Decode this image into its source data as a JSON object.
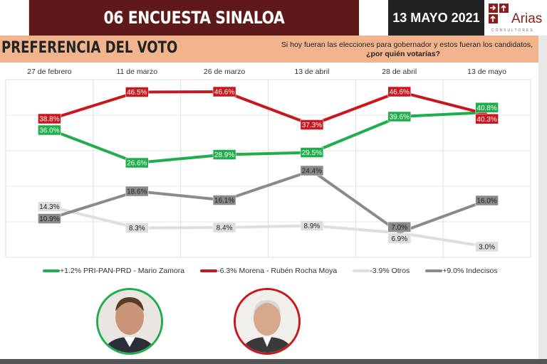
{
  "header": {
    "title": "06 ENCUESTA SINALOA",
    "date": "13 MAYO 2021",
    "logo_text": "Arias",
    "logo_sub": "CONSULTORES"
  },
  "section": {
    "title": "PREFERENCIA DEL VOTO",
    "question_line1": "Si hoy fueran las elecciones para gobernador y estos fueran los candidatos,",
    "question_line2": "¿por quién votarías?"
  },
  "chart_data": {
    "type": "line",
    "categories": [
      "27 de febrero",
      "11 de marzo",
      "26 de marzo",
      "13 de abril",
      "28 de abril",
      "13 de mayo"
    ],
    "ylim": [
      0,
      50
    ],
    "grid": true,
    "legend_position": "bottom",
    "series": [
      {
        "name": "+1.2% PRI-PAN-PRD - Mario Zamora",
        "color": "#1fae4b",
        "label_text": "#ffffff",
        "values": [
          36.0,
          26.6,
          28.9,
          29.5,
          39.6,
          40.8
        ]
      },
      {
        "name": "-6.3% Morena - Rubén Rocha Moya",
        "color": "#c8171d",
        "label_text": "#ffffff",
        "values": [
          38.8,
          46.5,
          46.6,
          37.3,
          46.6,
          40.3
        ]
      },
      {
        "name": "-3.9% Otros",
        "color": "#dedede",
        "label_text": "#222222",
        "values": [
          14.3,
          8.3,
          8.4,
          8.9,
          6.9,
          3.0
        ]
      },
      {
        "name": "+9.0% Indecisos",
        "color": "#8a8a8a",
        "label_text": "#222222",
        "values": [
          10.9,
          18.6,
          16.1,
          24.4,
          7.0,
          16.0
        ]
      }
    ]
  },
  "candidates": [
    {
      "name": "Mario Zamora",
      "color": "#1fae4b"
    },
    {
      "name": "Rubén Rocha Moya",
      "color": "#c8171d"
    }
  ]
}
